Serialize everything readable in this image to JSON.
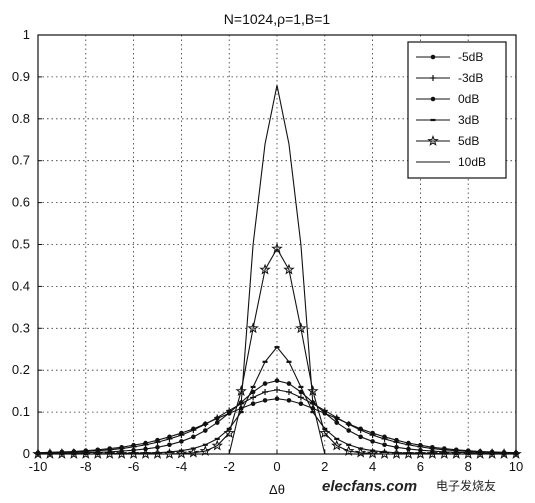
{
  "chart_data": {
    "type": "line",
    "title": "N=1024,ρ=1,B=1",
    "xlabel": "Δθ",
    "ylabel": "",
    "xlim": [
      -10,
      10
    ],
    "ylim": [
      0,
      1
    ],
    "xticks": [
      -10,
      -8,
      -6,
      -4,
      -2,
      0,
      2,
      4,
      6,
      8,
      10
    ],
    "yticks": [
      0,
      0.1,
      0.2,
      0.3,
      0.4,
      0.5,
      0.6,
      0.7,
      0.8,
      0.9,
      1
    ],
    "grid": true,
    "legend_position": "top-right",
    "x": [
      -10,
      -9.5,
      -9,
      -8.5,
      -8,
      -7.5,
      -7,
      -6.5,
      -6,
      -5.5,
      -5,
      -4.5,
      -4,
      -3.5,
      -3,
      -2.5,
      -2,
      -1.5,
      -1,
      -0.5,
      0,
      0.5,
      1,
      1.5,
      2,
      2.5,
      3,
      3.5,
      4,
      4.5,
      5,
      5.5,
      6,
      6.5,
      7,
      7.5,
      8,
      8.5,
      9,
      9.5,
      10
    ],
    "series": [
      {
        "name": "-5dB",
        "marker": "dot",
        "values": [
          0.003,
          0.004,
          0.005,
          0.006,
          0.008,
          0.01,
          0.013,
          0.016,
          0.021,
          0.026,
          0.033,
          0.041,
          0.05,
          0.06,
          0.072,
          0.085,
          0.097,
          0.109,
          0.12,
          0.128,
          0.132,
          0.128,
          0.12,
          0.109,
          0.097,
          0.085,
          0.072,
          0.06,
          0.05,
          0.041,
          0.033,
          0.026,
          0.021,
          0.016,
          0.013,
          0.01,
          0.008,
          0.006,
          0.005,
          0.004,
          0.003
        ]
      },
      {
        "name": "-3dB",
        "marker": "plus",
        "values": [
          0.002,
          0.003,
          0.004,
          0.005,
          0.006,
          0.008,
          0.01,
          0.013,
          0.017,
          0.022,
          0.028,
          0.036,
          0.045,
          0.057,
          0.071,
          0.087,
          0.104,
          0.12,
          0.135,
          0.148,
          0.153,
          0.148,
          0.135,
          0.12,
          0.104,
          0.087,
          0.071,
          0.057,
          0.045,
          0.036,
          0.028,
          0.022,
          0.017,
          0.013,
          0.01,
          0.008,
          0.006,
          0.005,
          0.004,
          0.003,
          0.002
        ]
      },
      {
        "name": "0dB",
        "marker": "dot",
        "values": [
          0.001,
          0.001,
          0.002,
          0.002,
          0.003,
          0.004,
          0.005,
          0.007,
          0.009,
          0.012,
          0.016,
          0.022,
          0.03,
          0.041,
          0.056,
          0.075,
          0.098,
          0.123,
          0.148,
          0.168,
          0.175,
          0.168,
          0.148,
          0.123,
          0.098,
          0.075,
          0.056,
          0.041,
          0.03,
          0.022,
          0.016,
          0.012,
          0.009,
          0.007,
          0.005,
          0.004,
          0.003,
          0.002,
          0.002,
          0.001,
          0.001
        ]
      },
      {
        "name": "3dB",
        "marker": "dash",
        "values": [
          0,
          0,
          0,
          0,
          0,
          0,
          0.001,
          0.001,
          0.002,
          0.002,
          0.003,
          0.005,
          0.008,
          0.013,
          0.022,
          0.036,
          0.06,
          0.1,
          0.16,
          0.22,
          0.255,
          0.22,
          0.16,
          0.1,
          0.06,
          0.036,
          0.022,
          0.013,
          0.008,
          0.005,
          0.003,
          0.002,
          0.002,
          0.001,
          0.001,
          0,
          0,
          0,
          0,
          0,
          0
        ]
      },
      {
        "name": "5dB",
        "marker": "star",
        "values": [
          0,
          0,
          0,
          0,
          0,
          0,
          0,
          0,
          0,
          0,
          0,
          0,
          0.001,
          0.003,
          0.007,
          0.02,
          0.05,
          0.15,
          0.3,
          0.44,
          0.49,
          0.44,
          0.3,
          0.15,
          0.05,
          0.02,
          0.007,
          0.003,
          0.001,
          0,
          0,
          0,
          0,
          0,
          0,
          0,
          0,
          0,
          0,
          0,
          0
        ]
      },
      {
        "name": "10dB",
        "marker": "none",
        "values": [
          0,
          0,
          0,
          0,
          0,
          0,
          0,
          0,
          0,
          0,
          0,
          0,
          0,
          0,
          0,
          0,
          0,
          0.12,
          0.5,
          0.74,
          0.88,
          0.74,
          0.5,
          0.12,
          0,
          0,
          0,
          0,
          0,
          0,
          0,
          0,
          0,
          0,
          0,
          0,
          0,
          0,
          0,
          0,
          0
        ]
      }
    ]
  },
  "watermark": {
    "brand": "elecfans.com",
    "cn": "电子发烧友"
  }
}
